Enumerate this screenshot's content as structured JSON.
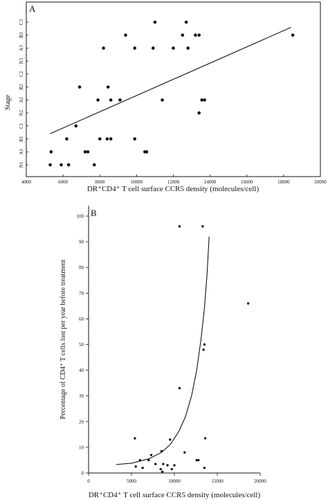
{
  "chart_data": [
    {
      "panel": "A",
      "type": "scatter",
      "xlabel": "DR⁺CD4⁺ T cell surface CCR5 density (molecules/cell)",
      "ylabel": "Stage",
      "x_ticks": [
        "4000",
        "6000",
        "8000",
        "10000",
        "12000",
        "14000",
        "16000",
        "18000",
        "20000"
      ],
      "xlim": [
        4000,
        20000
      ],
      "categories": [
        "N1",
        "A1",
        "B1",
        "C1",
        "N2",
        "A2",
        "B2",
        "C2",
        "N3",
        "A3",
        "B3",
        "C3"
      ],
      "points": [
        {
          "x": 5300,
          "stage": "N1"
        },
        {
          "x": 5900,
          "stage": "N1"
        },
        {
          "x": 6300,
          "stage": "N1"
        },
        {
          "x": 7700,
          "stage": "N1"
        },
        {
          "x": 5350,
          "stage": "A1"
        },
        {
          "x": 7200,
          "stage": "A1"
        },
        {
          "x": 7350,
          "stage": "A1"
        },
        {
          "x": 10450,
          "stage": "A1"
        },
        {
          "x": 10550,
          "stage": "A1"
        },
        {
          "x": 6200,
          "stage": "B1"
        },
        {
          "x": 8000,
          "stage": "B1"
        },
        {
          "x": 8400,
          "stage": "B1"
        },
        {
          "x": 8600,
          "stage": "B1"
        },
        {
          "x": 9900,
          "stage": "B1"
        },
        {
          "x": 6700,
          "stage": "C1"
        },
        {
          "x": 13400,
          "stage": "N2"
        },
        {
          "x": 7900,
          "stage": "A2"
        },
        {
          "x": 8600,
          "stage": "A2"
        },
        {
          "x": 9100,
          "stage": "A2"
        },
        {
          "x": 11400,
          "stage": "A2"
        },
        {
          "x": 13550,
          "stage": "A2"
        },
        {
          "x": 13700,
          "stage": "A2"
        },
        {
          "x": 6900,
          "stage": "B2"
        },
        {
          "x": 8450,
          "stage": "B2"
        },
        {
          "x": 8200,
          "stage": "A3"
        },
        {
          "x": 9900,
          "stage": "A3"
        },
        {
          "x": 10900,
          "stage": "A3"
        },
        {
          "x": 12000,
          "stage": "A3"
        },
        {
          "x": 12800,
          "stage": "A3"
        },
        {
          "x": 9400,
          "stage": "B3"
        },
        {
          "x": 12500,
          "stage": "B3"
        },
        {
          "x": 13200,
          "stage": "B3"
        },
        {
          "x": 13400,
          "stage": "B3"
        },
        {
          "x": 18500,
          "stage": "B3"
        },
        {
          "x": 11000,
          "stage": "C3"
        },
        {
          "x": 12700,
          "stage": "C3"
        }
      ],
      "fit_line": {
        "x": [
          5300,
          18400
        ],
        "stage_index": [
          2.4,
          10.6
        ]
      }
    },
    {
      "panel": "B",
      "type": "scatter",
      "xlabel": "DR⁺CD4⁺ T cell surface CCR5 density (molecules/cell)",
      "ylabel": "Percentage of CD4⁺ T cells lost per year before treatment",
      "x_ticks": [
        "0",
        "5000",
        "10000",
        "15000",
        "20000"
      ],
      "y_ticks": [
        "0",
        "10",
        "20",
        "30",
        "40",
        "50",
        "60",
        "70",
        "80",
        "90",
        "100"
      ],
      "xlim": [
        0,
        20000
      ],
      "ylim": [
        0,
        100
      ],
      "points": [
        {
          "x": 10600,
          "y": 96
        },
        {
          "x": 13300,
          "y": 96
        },
        {
          "x": 18600,
          "y": 66
        },
        {
          "x": 13500,
          "y": 50
        },
        {
          "x": 13400,
          "y": 48
        },
        {
          "x": 10600,
          "y": 33
        },
        {
          "x": 5400,
          "y": 13.5
        },
        {
          "x": 9500,
          "y": 13
        },
        {
          "x": 13600,
          "y": 13.5
        },
        {
          "x": 8500,
          "y": 8.5
        },
        {
          "x": 11200,
          "y": 8
        },
        {
          "x": 7300,
          "y": 7
        },
        {
          "x": 6000,
          "y": 5
        },
        {
          "x": 7000,
          "y": 5
        },
        {
          "x": 12600,
          "y": 5
        },
        {
          "x": 12800,
          "y": 5
        },
        {
          "x": 7800,
          "y": 3.5
        },
        {
          "x": 8700,
          "y": 3.5
        },
        {
          "x": 9200,
          "y": 3
        },
        {
          "x": 10000,
          "y": 3
        },
        {
          "x": 5500,
          "y": 2.5
        },
        {
          "x": 6300,
          "y": 2
        },
        {
          "x": 8400,
          "y": 1.5
        },
        {
          "x": 9700,
          "y": 1.5
        },
        {
          "x": 8600,
          "y": 0.5
        },
        {
          "x": 13500,
          "y": 2
        }
      ],
      "fit_curve": {
        "x": [
          3200,
          5000,
          7000,
          8500,
          9500,
          10500,
          11300,
          12000,
          12600,
          13100,
          13500,
          13800,
          14050
        ],
        "y": [
          3.3,
          3.8,
          5.5,
          8,
          11,
          16,
          22,
          30,
          40,
          52,
          64,
          77,
          92
        ]
      }
    }
  ]
}
